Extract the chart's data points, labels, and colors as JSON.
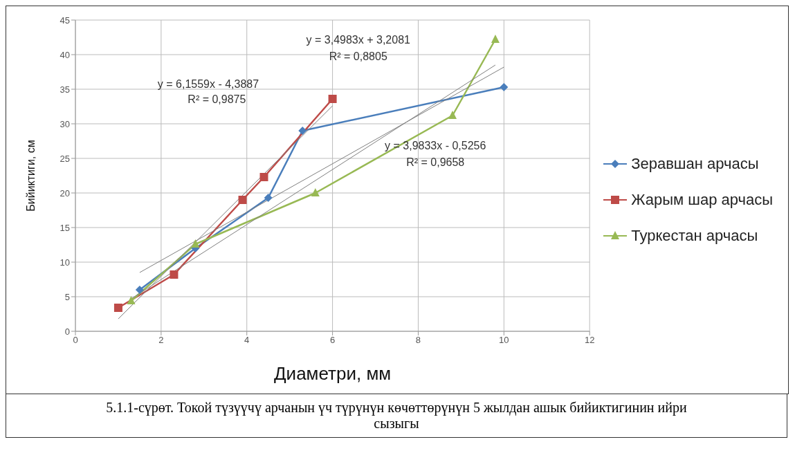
{
  "chart_data": {
    "type": "line",
    "xlabel": "Диаметри, мм",
    "ylabel": "Бийиктиги, см",
    "xlim": [
      0,
      12
    ],
    "xticks": [
      0,
      2,
      4,
      6,
      8,
      10,
      12
    ],
    "ylim": [
      0,
      45
    ],
    "yticks": [
      0,
      5,
      10,
      15,
      20,
      25,
      30,
      35,
      40,
      45
    ],
    "grid": true,
    "legend": "right",
    "line_style": "solid",
    "series": [
      {
        "name": "Зеравшан арчасы",
        "color": "#4a7ebb",
        "marker": "diamond",
        "x": [
          1.5,
          2.8,
          4.5,
          5.3,
          10
        ],
        "values": [
          6,
          12,
          19.3,
          29,
          35.3
        ]
      },
      {
        "name": "Жарым шар арчасы",
        "color": "#be4b48",
        "marker": "square",
        "x": [
          1,
          2.3,
          3.9,
          4.4,
          6
        ],
        "values": [
          3.4,
          8.2,
          19,
          22.3,
          33.6
        ]
      },
      {
        "name": "Туркестан арчасы",
        "color": "#98b954",
        "marker": "triangle",
        "x": [
          1.3,
          2.8,
          5.6,
          8.8,
          9.8
        ],
        "values": [
          4.4,
          12.6,
          20,
          31.2,
          42.2
        ]
      },
      {
        "color": "#7f7f7f",
        "marker": "none",
        "x": [
          1.5,
          10
        ],
        "values": [
          8.5,
          38.2
        ]
      },
      {
        "color": "#7f7f7f",
        "marker": "none",
        "x": [
          1,
          6
        ],
        "values": [
          1.8,
          32.6
        ]
      },
      {
        "color": "#7f7f7f",
        "marker": "none",
        "x": [
          1.3,
          9.8
        ],
        "values": [
          4.7,
          38.5
        ]
      }
    ],
    "annotations": [
      "y = 3,4983x + 3,2081",
      "R² = 0,8805",
      "y = 6,1559x - 4,3887",
      "R² = 0,9875",
      "y = 3,9833x - 0,5256",
      "R² = 0,9658",
      "5.1.1-сүрөт. Токой түзүүчү арчанын үч түрүнүн көчөттөрүнүн 5 жылдан ашык бийиктигинин ийри сызыгы"
    ]
  }
}
